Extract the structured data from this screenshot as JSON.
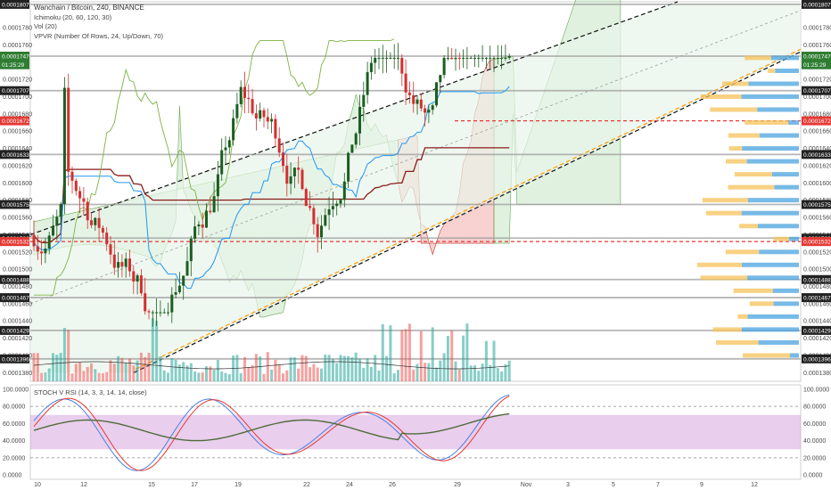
{
  "header": {
    "symbol_line": "Wanchain / Bitcoin, 240, BINANCE",
    "indicators": [
      "Ichimoku (20, 60, 120, 30)",
      "Vol (20)",
      "VPVR (Number Of Rows, 24, Up/Down, 70)"
    ]
  },
  "oscillator": {
    "title": "STOCH V RSI (14, 3, 3, 14, 14, close)"
  },
  "colors": {
    "up": "#26a69a",
    "down": "#ef5350",
    "dark_up": "#1b5e20",
    "kijun": "#8b1a1a",
    "tenkan": "#2196f3",
    "chikou": "#7cb342",
    "cloud_green": "#a5d6a7",
    "cloud_red": "#ef9a9a",
    "vp_up": "#4aa3df",
    "vp_down": "#f5c25a",
    "level_line": "#9e9e9e",
    "red_line": "#e53935"
  },
  "chart_data": [
    {
      "type": "candlestick",
      "y_range": [
        0.000137,
        0.000181
      ],
      "x_ticks": [
        "10",
        "12",
        "15",
        "17",
        "19",
        "22",
        "24",
        "26",
        "29",
        "Nov",
        "3",
        "5",
        "7",
        "9",
        "12"
      ],
      "y_ticks": [
        "0.0001780",
        "0.0001760",
        "0.0001720",
        "0.0001700",
        "0.0001680",
        "0.0001660",
        "0.0001640",
        "0.0001620",
        "0.0001600",
        "0.0001580",
        "0.0001560",
        "0.0001540",
        "0.0001520",
        "0.0001500",
        "0.0001480",
        "0.0001460",
        "0.0001440",
        "0.0001420",
        "0.0001400",
        "0.0001380"
      ],
      "price_tags": [
        {
          "label": "0.0001807",
          "value": 0.0001807,
          "color": "#222222"
        },
        {
          "label": "0.0001747",
          "value": 0.0001747,
          "color": "#2e7d32"
        },
        {
          "label": "01:25:29",
          "value": 0.0001737,
          "color": "#2e7d32"
        },
        {
          "label": "0.0001707",
          "value": 0.0001707,
          "color": "#222222"
        },
        {
          "label": "0.0001672",
          "value": 0.0001672,
          "color": "#e53935"
        },
        {
          "label": "0.0001633",
          "value": 0.0001633,
          "color": "#222222"
        },
        {
          "label": "0.0001575",
          "value": 0.0001575,
          "color": "#222222"
        },
        {
          "label": "0.0001536",
          "value": 0.0001536,
          "color": "#222222"
        },
        {
          "label": "0.0001532",
          "value": 0.0001532,
          "color": "#e53935"
        },
        {
          "label": "0.0001488",
          "value": 0.0001488,
          "color": "#222222"
        },
        {
          "label": "0.0001467",
          "value": 0.0001467,
          "color": "#222222"
        },
        {
          "label": "0.0001429",
          "value": 0.0001429,
          "color": "#222222"
        },
        {
          "label": "0.0001396",
          "value": 0.0001396,
          "color": "#222222"
        }
      ],
      "horizontal_levels": [
        0.0001807,
        0.0001747,
        0.0001707,
        0.0001633,
        0.0001575,
        0.0001536,
        0.0001488,
        0.0001467,
        0.0001429,
        0.0001396
      ],
      "red_levels": [
        0.0001672,
        0.0001532
      ]
    },
    {
      "type": "line",
      "title": "STOCH V RSI (14, 3, 3, 14, 14, close)",
      "y_range": [
        -5,
        105
      ],
      "y_ticks": [
        "100.0000",
        "80.0000",
        "60.0000",
        "40.0000",
        "20.0000",
        "0.0000"
      ],
      "band": [
        30,
        70
      ],
      "dashed": [
        80,
        20
      ]
    }
  ]
}
